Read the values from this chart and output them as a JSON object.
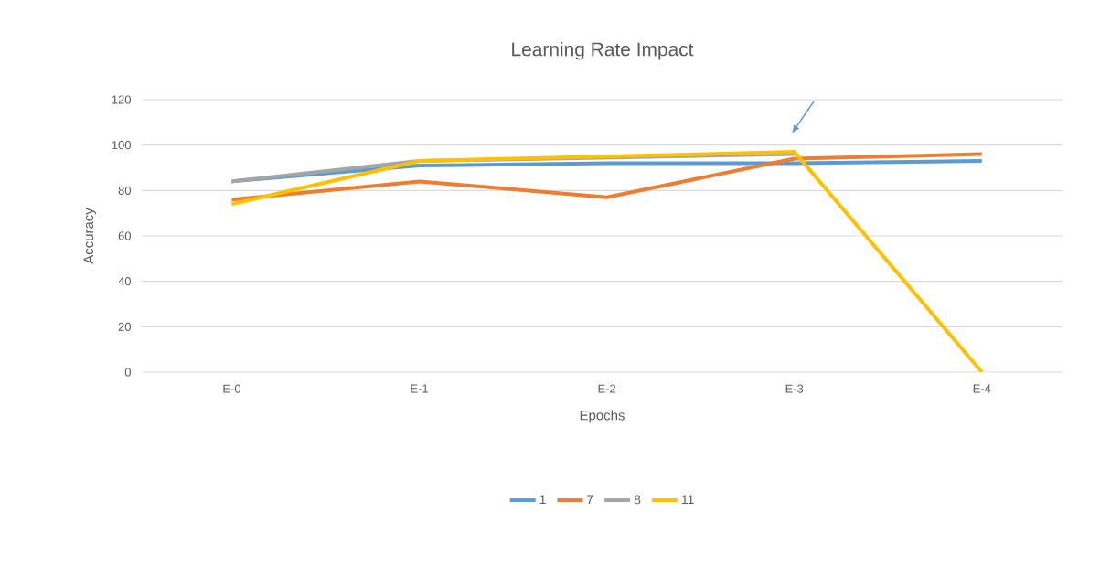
{
  "chart_data": {
    "type": "line",
    "title": "Learning Rate Impact",
    "xlabel": "Epochs",
    "ylabel": "Accuracy",
    "categories": [
      "E-0",
      "E-1",
      "E-2",
      "E-3",
      "E-4"
    ],
    "series": [
      {
        "name": "1",
        "color": "#5b9bd5",
        "values": [
          84,
          91,
          92,
          92,
          93
        ]
      },
      {
        "name": "7",
        "color": "#ed7d31",
        "values": [
          76,
          84,
          77,
          94,
          96
        ]
      },
      {
        "name": "8",
        "color": "#a5a5a5",
        "values": [
          84,
          93,
          null,
          96,
          null
        ]
      },
      {
        "name": "11",
        "color": "#ffc000",
        "values": [
          74,
          93,
          95,
          97,
          0
        ]
      }
    ],
    "ylim": [
      0,
      120
    ],
    "yticks": [
      0,
      20,
      40,
      60,
      80,
      100,
      120
    ],
    "grid": "y",
    "legend": "bottom",
    "marker": "none",
    "line_style": "solid"
  }
}
